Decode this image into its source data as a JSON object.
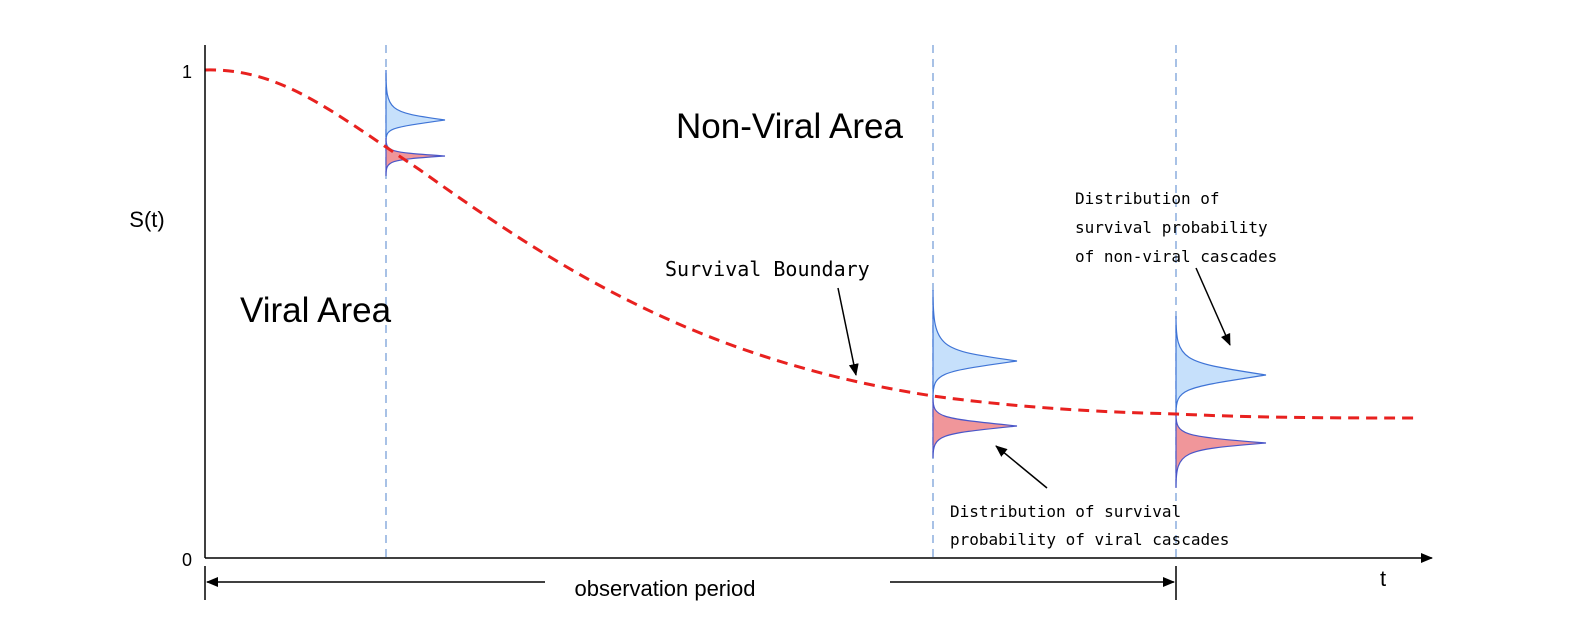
{
  "axis": {
    "y_label": "S(t)",
    "y_tick_top": "1",
    "y_tick_bottom": "0",
    "x_label": "t"
  },
  "regions": {
    "viral": "Viral Area",
    "non_viral": "Non-Viral Area"
  },
  "annotations": {
    "boundary": "Survival Boundary",
    "nonviral_dist": [
      "Distribution of",
      "survival probability",
      "of non-viral cascades"
    ],
    "viral_dist": [
      "Distribution of survival",
      "probability of viral cascades"
    ],
    "observation": "observation period"
  },
  "colors": {
    "boundary": "#e8211f",
    "non_viral_fill": "#c6e0fb",
    "non_viral_stroke": "#3f74d6",
    "viral_fill": "#f0969a",
    "viral_stroke": "#4a56c8",
    "guide": "#7aa0d8",
    "axis": "#000000"
  }
}
